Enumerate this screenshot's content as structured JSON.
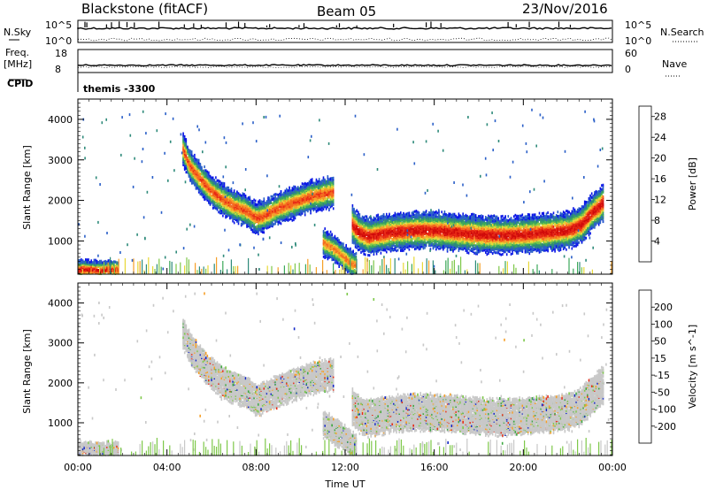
{
  "header": {
    "station": "Blackstone (fitACF)",
    "beam": "Beam 05",
    "date": "23/Nov/2016"
  },
  "top_panel": {
    "left_label": "N.Sky",
    "right_label": "N.Search",
    "left_ticks": [
      "10^5",
      "10^0"
    ],
    "right_ticks": [
      "10^5",
      "10^0"
    ]
  },
  "freq_panel": {
    "left_label_1": "Freq.",
    "left_label_2": "[MHz]",
    "right_label": "Nave",
    "left_ticks": [
      "18",
      "8"
    ],
    "right_ticks": [
      "60",
      "0"
    ]
  },
  "cpid_panel": {
    "label": "CPID",
    "program": "themis -3300"
  },
  "chart_data": [
    {
      "type": "heatmap",
      "title": "",
      "xlabel": "",
      "ylabel": "Slant Range [km]",
      "xlim": [
        0,
        24
      ],
      "ylim": [
        180,
        4500
      ],
      "x_ticks": [
        0,
        4,
        8,
        12,
        16,
        20,
        24
      ],
      "y_ticks": [
        1000,
        2000,
        3000,
        4000
      ],
      "colorbar": {
        "label": "Power [dB]",
        "ticks": [
          "4",
          "8",
          "12",
          "16",
          "20",
          "24",
          "28"
        ],
        "tick_values": [
          4,
          8,
          12,
          16,
          20,
          24,
          28
        ],
        "range": [
          0,
          30
        ],
        "colors": [
          "#0a16e6",
          "#2a5fc8",
          "#2e8a7a",
          "#3ca85a",
          "#7ec84a",
          "#e8d838",
          "#f6a028",
          "#f46a1e",
          "#e82a14",
          "#d00a0a"
        ]
      },
      "features": [
        {
          "t": [
            4.7,
            5.0,
            5.5,
            6.0,
            6.5,
            7.0,
            7.5,
            8.0,
            8.5,
            9.0,
            9.5,
            10.0,
            10.5,
            11.0,
            11.5
          ],
          "r": [
            3300,
            2900,
            2550,
            2250,
            2050,
            1900,
            1800,
            1600,
            1700,
            1850,
            1950,
            2050,
            2150,
            2200,
            2250
          ],
          "peak": 24,
          "width": 260
        },
        {
          "t": [
            12.3,
            12.6,
            13.0,
            13.5,
            14.0,
            15.0,
            16.0,
            17.0,
            18.0,
            19.0,
            20.0,
            21.0,
            22.0,
            22.6,
            23.0,
            23.6
          ],
          "r": [
            1450,
            1250,
            1150,
            1200,
            1250,
            1300,
            1300,
            1250,
            1200,
            1180,
            1200,
            1250,
            1300,
            1450,
            1700,
            2000
          ],
          "peak": 28,
          "width": 300
        },
        {
          "t": [
            0.0,
            0.3,
            0.6,
            0.9,
            1.2,
            1.5,
            1.8
          ],
          "r": [
            330,
            340,
            330,
            320,
            330,
            340,
            330
          ],
          "peak": 28,
          "width": 150
        },
        {
          "t": [
            11.0,
            11.3,
            11.6,
            11.9,
            12.2,
            12.5
          ],
          "r": [
            1000,
            900,
            800,
            650,
            500,
            420
          ],
          "peak": 22,
          "width": 220
        }
      ]
    },
    {
      "type": "heatmap",
      "title": "",
      "xlabel": "Time UT",
      "ylabel": "Slant Range [km]",
      "xlim": [
        0,
        24
      ],
      "ylim": [
        180,
        4500
      ],
      "x_ticks": [
        0,
        4,
        8,
        12,
        16,
        20,
        24
      ],
      "x_tick_labels": [
        "00:00",
        "04:00",
        "08:00",
        "12:00",
        "16:00",
        "20:00",
        "00:00"
      ],
      "y_ticks": [
        1000,
        2000,
        3000,
        4000
      ],
      "colorbar": {
        "label": "Velocity [m s^-1]",
        "ticks": [
          "200",
          "100",
          "50",
          "15",
          "-15",
          "-50",
          "-100",
          "-200"
        ],
        "colors": [
          "#1226c8",
          "#2e8a7a",
          "#3ca840",
          "#7ec84a",
          "#c8c8c8",
          "#f6a028",
          "#f46a1e",
          "#e82a14",
          "#d00a0a"
        ]
      }
    }
  ]
}
